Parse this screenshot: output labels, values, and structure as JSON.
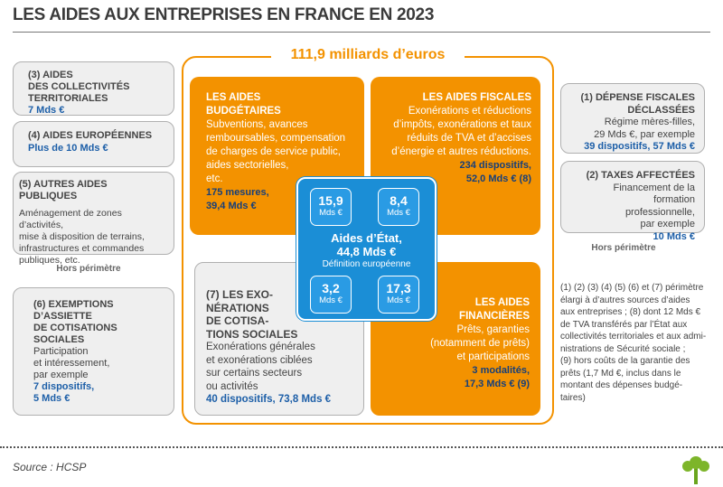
{
  "header": {
    "title": "LES AIDES AUX ENTREPRISES EN FRANCE EN 2023"
  },
  "total": "111,9 milliards d’euros",
  "boxes": [
    {
      "title": [
        "(3) AIDES",
        "DES COLLECTIVITÉS",
        "TERRITORIALES"
      ],
      "amount": [
        "7 Mds €"
      ]
    },
    {
      "title": [
        "(4) AIDES EUROPÉENNES"
      ],
      "amount": [
        "Plus de 10 Mds €"
      ]
    },
    {
      "title": [
        "(5) AUTRES AIDES",
        "PUBLIQUES"
      ],
      "body": [
        "Aménagement de zones d’activités,",
        "mise à disposition de terrains,",
        "infrastructures et commandes",
        "publiques, etc."
      ]
    },
    {
      "title": [
        "(6) EXEMPTIONS",
        "D’ASSIETTE",
        "DE COTISATIONS",
        "SOCIALES"
      ],
      "body": [
        "Participation",
        "et intéressement,",
        "par exemple"
      ],
      "amount": [
        "7 dispositifs,",
        "5 Mds €"
      ]
    },
    {
      "title": [
        "LES AIDES",
        "BUDGÉTAIRES"
      ],
      "body": [
        "Subventions, avances",
        "remboursables, compensation",
        "de charges de service public,",
        "aides sectorielles,",
        "etc."
      ],
      "amount": [
        "175 mesures,",
        "39,4 Mds €"
      ]
    },
    {
      "title": [
        "LES AIDES FISCALES"
      ],
      "body": [
        "Exonérations et réductions",
        "d’impôts, exonérations et taux",
        "réduits de TVA et d’accises",
        "d’énergie et autres réductions."
      ],
      "amount": [
        "234 dispositifs,",
        "52,0 Mds € (8)"
      ]
    },
    {
      "title": [
        "(7) LES EXO-",
        "NÉRATIONS",
        "DE COTISA-",
        "TIONS SOCIALES"
      ],
      "body": [
        "Exonérations générales",
        "et exonérations ciblées",
        "sur certains secteurs",
        "ou activités"
      ],
      "amount": [
        "40 dispositifs, 73,8 Mds €"
      ]
    },
    {
      "title": [
        "LES AIDES",
        "FINANCIÈRES"
      ],
      "body": [
        "Prêts, garanties",
        "(notamment de prêts)",
        "et participations"
      ],
      "amount": [
        "3 modalités,",
        "17,3 Mds € (9)"
      ]
    },
    {
      "title": [
        "(1) DÉPENSE FISCALES",
        "DÉCLASSÉES"
      ],
      "body": [
        "Régime mères-filles,",
        "29 Mds €, par exemple"
      ],
      "amount": [
        "39 dispositifs, 57 Mds €"
      ]
    },
    {
      "title": [
        "(2) TAXES AFFECTÉES"
      ],
      "body": [
        "Financement de la formation",
        "professionnelle,",
        "par exemple"
      ],
      "amount": [
        "10 Mds €"
      ]
    }
  ],
  "state_aid": {
    "cells": [
      {
        "value": "15,9",
        "unit": "Mds €"
      },
      {
        "value": "8,4",
        "unit": "Mds €"
      },
      {
        "value": "3,2",
        "unit": "Mds €"
      },
      {
        "value": "17,3",
        "unit": "Mds €"
      }
    ],
    "title": [
      "Aides d’État,",
      "44,8 Mds €"
    ],
    "subtitle": "Définition européenne"
  },
  "notes": [
    "Hors périmètre",
    "Hors périmètre"
  ],
  "footnote": [
    "(1) (2) (3) (4) (5) (6) et (7) périmètre",
    "élargi à d’autres sources d’aides",
    "aux entreprises ; (8) dont 12 Mds €",
    "de TVA transférés par l’État aux",
    "collectivités territoriales et aux admi-",
    "nistrations de Sécurité sociale ;",
    "(9)  hors coûts de la garantie des",
    "prêts (1,7 Md €, inclus dans le",
    "montant des dépenses budgé-",
    "taires)"
  ],
  "source": "Source : HCSP"
}
